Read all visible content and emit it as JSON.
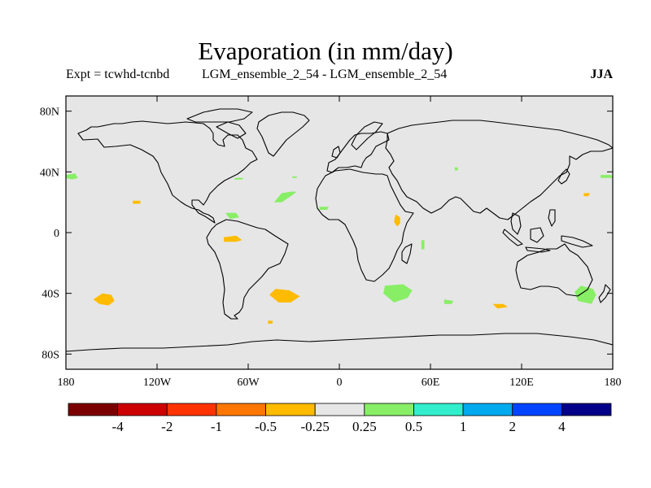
{
  "header": {
    "title": "Evaporation (in mm/day)",
    "expt_label": "Expt = tcwhd-tcnbd",
    "comparison_label": "LGM_ensemble_2_54 - LGM_ensemble_2_54",
    "season_label": "JJA"
  },
  "map": {
    "projection": "cylindrical-equidistant",
    "background_color": "#e6e6e6",
    "lat_range": [
      -90,
      90
    ],
    "lon_range": [
      -180,
      180
    ],
    "y_ticks": [
      {
        "lat": 80,
        "label": "80N"
      },
      {
        "lat": 40,
        "label": "40N"
      },
      {
        "lat": 0,
        "label": "0"
      },
      {
        "lat": -40,
        "label": "40S"
      },
      {
        "lat": -80,
        "label": "80S"
      }
    ],
    "x_ticks": [
      {
        "lon": -180,
        "label": "180"
      },
      {
        "lon": -120,
        "label": "120W"
      },
      {
        "lon": -60,
        "label": "60W"
      },
      {
        "lon": 0,
        "label": "0"
      },
      {
        "lon": 60,
        "label": "60E"
      },
      {
        "lon": 120,
        "label": "120E"
      },
      {
        "lon": 180,
        "label": "180"
      }
    ]
  },
  "colorbar": {
    "colors": [
      "#7a0000",
      "#cc0000",
      "#ff3300",
      "#ff7700",
      "#ffbb00",
      "#e6e6e6",
      "#88ee66",
      "#33eecc",
      "#00aaee",
      "#0044ff",
      "#000088"
    ],
    "labels": [
      "-4",
      "-2",
      "-1",
      "-0.5",
      "-0.25",
      "0.25",
      "0.5",
      "1",
      "2",
      "4"
    ]
  },
  "anomalies": [
    {
      "name": "sw-pacific-40s",
      "color": "#ffbb00",
      "points": [
        [
          -156,
          -40
        ],
        [
          -150,
          -41
        ],
        [
          -148,
          -45
        ],
        [
          -152,
          -48
        ],
        [
          -158,
          -47
        ],
        [
          -162,
          -44
        ]
      ]
    },
    {
      "name": "south-atlantic-40s",
      "color": "#ffbb00",
      "points": [
        [
          -42,
          -37
        ],
        [
          -33,
          -38
        ],
        [
          -26,
          -42
        ],
        [
          -32,
          -46
        ],
        [
          -40,
          -46
        ],
        [
          -46,
          -41
        ]
      ]
    },
    {
      "name": "south-atlantic-small",
      "color": "#ffbb00",
      "points": [
        [
          -47,
          -58
        ],
        [
          -44,
          -58
        ],
        [
          -44,
          -60
        ],
        [
          -47,
          -60
        ]
      ]
    },
    {
      "name": "amazon",
      "color": "#ffbb00",
      "points": [
        [
          -76,
          -3
        ],
        [
          -68,
          -2
        ],
        [
          -64,
          -5
        ],
        [
          -68,
          -6
        ],
        [
          -76,
          -6
        ]
      ]
    },
    {
      "name": "east-africa",
      "color": "#ffbb00",
      "points": [
        [
          37,
          12
        ],
        [
          40,
          10
        ],
        [
          40,
          6
        ],
        [
          38,
          4
        ],
        [
          36,
          7
        ]
      ]
    },
    {
      "name": "indian-ocean-50s",
      "color": "#ffbb00",
      "points": [
        [
          101,
          -47
        ],
        [
          108,
          -47
        ],
        [
          111,
          -49
        ],
        [
          104,
          -50
        ]
      ]
    },
    {
      "name": "east-pacific-20n",
      "color": "#ffbb00",
      "points": [
        [
          -136,
          21
        ],
        [
          -131,
          21
        ],
        [
          -131,
          19
        ],
        [
          -136,
          19
        ]
      ]
    },
    {
      "name": "nw-pacific-25n",
      "color": "#ffbb00",
      "points": [
        [
          161,
          26
        ],
        [
          165,
          26
        ],
        [
          164,
          24
        ],
        [
          161,
          24
        ]
      ]
    },
    {
      "name": "nw-pacific-37n",
      "color": "#88ee66",
      "points": [
        [
          -180,
          38
        ],
        [
          -174,
          39
        ],
        [
          -172,
          36
        ],
        [
          -176,
          35
        ],
        [
          -180,
          36
        ]
      ]
    },
    {
      "name": "n-atlantic-35n",
      "color": "#88ee66",
      "points": [
        [
          -38,
          26
        ],
        [
          -32,
          27
        ],
        [
          -28,
          27
        ],
        [
          -32,
          24
        ],
        [
          -38,
          20
        ],
        [
          -43,
          20
        ]
      ]
    },
    {
      "name": "atlantic-small-35n",
      "color": "#88ee66",
      "points": [
        [
          -69,
          36
        ],
        [
          -63,
          36
        ],
        [
          -64,
          35
        ],
        [
          -69,
          35
        ]
      ]
    },
    {
      "name": "atlantic-bermuda",
      "color": "#88ee66",
      "points": [
        [
          -31,
          37
        ],
        [
          -28,
          37
        ],
        [
          -28,
          36
        ],
        [
          -31,
          36
        ]
      ]
    },
    {
      "name": "caribbean",
      "color": "#88ee66",
      "points": [
        [
          -75,
          13
        ],
        [
          -68,
          13
        ],
        [
          -66,
          10
        ],
        [
          -72,
          9
        ]
      ]
    },
    {
      "name": "west-africa-coast",
      "color": "#88ee66",
      "points": [
        [
          -13,
          17
        ],
        [
          -7,
          17
        ],
        [
          -8,
          15
        ],
        [
          -13,
          15
        ]
      ]
    },
    {
      "name": "east-africa-lake",
      "color": "#88ee66",
      "points": [
        [
          54,
          -5
        ],
        [
          56,
          -5
        ],
        [
          56,
          -11
        ],
        [
          54,
          -11
        ]
      ]
    },
    {
      "name": "south-indian-35s",
      "color": "#88ee66",
      "points": [
        [
          30,
          -35
        ],
        [
          42,
          -34
        ],
        [
          48,
          -38
        ],
        [
          45,
          -43
        ],
        [
          36,
          -46
        ],
        [
          29,
          -40
        ]
      ]
    },
    {
      "name": "indian-ocean-45s",
      "color": "#88ee66",
      "points": [
        [
          69,
          -44
        ],
        [
          75,
          -45
        ],
        [
          74,
          -47
        ],
        [
          69,
          -47
        ]
      ]
    },
    {
      "name": "tasman-sea",
      "color": "#88ee66",
      "points": [
        [
          159,
          -35
        ],
        [
          167,
          -37
        ],
        [
          169,
          -41
        ],
        [
          166,
          -47
        ],
        [
          157,
          -45
        ],
        [
          155,
          -39
        ]
      ]
    },
    {
      "name": "north-pacific-38n",
      "color": "#88ee66",
      "points": [
        [
          172,
          38
        ],
        [
          179,
          38
        ],
        [
          180,
          36
        ],
        [
          172,
          36
        ]
      ]
    },
    {
      "name": "arabia-small",
      "color": "#88ee66",
      "points": [
        [
          76,
          43
        ],
        [
          78,
          43
        ],
        [
          78,
          41
        ],
        [
          76,
          41
        ]
      ]
    }
  ]
}
